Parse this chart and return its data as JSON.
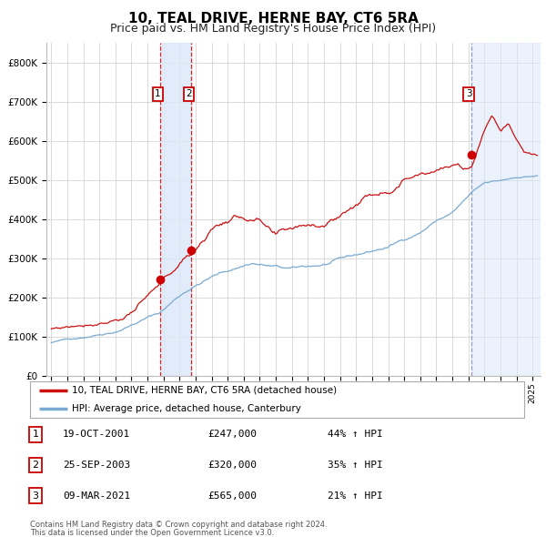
{
  "title": "10, TEAL DRIVE, HERNE BAY, CT6 5RA",
  "subtitle": "Price paid vs. HM Land Registry's House Price Index (HPI)",
  "title_fontsize": 11,
  "subtitle_fontsize": 9,
  "ylabel_ticks": [
    "£0",
    "£100K",
    "£200K",
    "£300K",
    "£400K",
    "£500K",
    "£600K",
    "£700K",
    "£800K"
  ],
  "ytick_values": [
    0,
    100000,
    200000,
    300000,
    400000,
    500000,
    600000,
    700000,
    800000
  ],
  "ylim": [
    0,
    850000
  ],
  "xlim_start": 1994.7,
  "xlim_end": 2025.5,
  "sale_dates": [
    2001.8,
    2003.73,
    2021.19
  ],
  "sale_prices": [
    247000,
    320000,
    565000
  ],
  "sale_labels": [
    "1",
    "2",
    "3"
  ],
  "vspan_color": "#dce8f8",
  "vspan_alpha": 0.85,
  "red_line_color": "#cc1111",
  "blue_line_color": "#7aaad0",
  "dot_color": "#cc0000",
  "dot_size": 7,
  "legend_label_red": "10, TEAL DRIVE, HERNE BAY, CT6 5RA (detached house)",
  "legend_label_blue": "HPI: Average price, detached house, Canterbury",
  "table_entries": [
    {
      "num": "1",
      "date": "19-OCT-2001",
      "price": "£247,000",
      "pct": "44% ↑ HPI"
    },
    {
      "num": "2",
      "date": "25-SEP-2003",
      "price": "£320,000",
      "pct": "35% ↑ HPI"
    },
    {
      "num": "3",
      "date": "09-MAR-2021",
      "price": "£565,000",
      "pct": "21% ↑ HPI"
    }
  ],
  "footer1": "Contains HM Land Registry data © Crown copyright and database right 2024.",
  "footer2": "This data is licensed under the Open Government Licence v3.0.",
  "background_color": "#ffffff",
  "grid_color": "#cccccc"
}
